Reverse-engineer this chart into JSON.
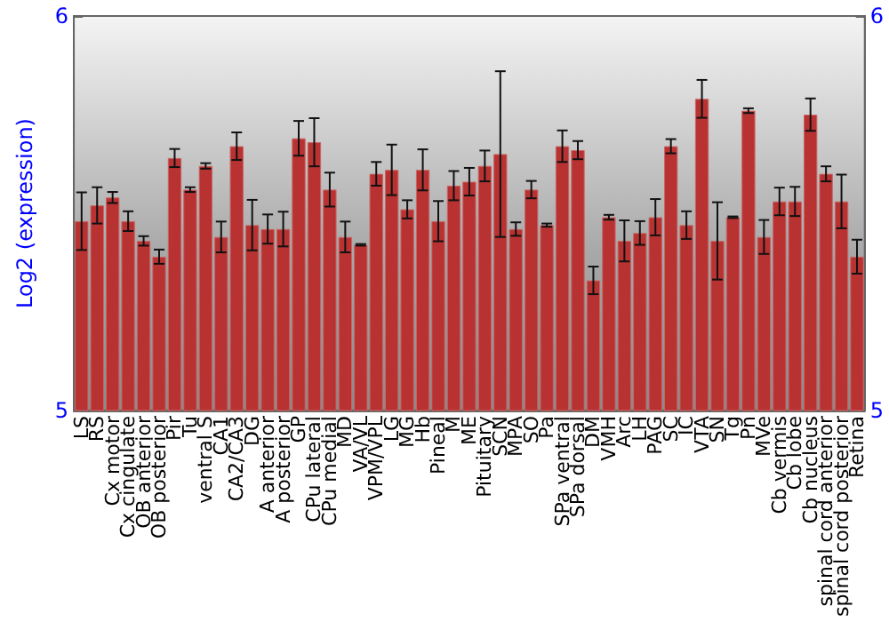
{
  "chart_data": {
    "type": "bar",
    "ylabel": "Log2 (expression)",
    "categories": [
      "LS",
      "RS",
      "Cx motor",
      "Cx cingulate",
      "OB anterior",
      "OB posterior",
      "Pir",
      "Tu",
      "ventral S",
      "CA1",
      "CA2/CA3",
      "DG",
      "A anterior",
      "A posterior",
      "GP",
      "CPu lateral",
      "CPu medial",
      "MD",
      "VA/VL",
      "VPM/VPL",
      "LG",
      "MG",
      "Hb",
      "Pineal",
      "M",
      "ME",
      "Pituitary",
      "SCN",
      "MPA",
      "SO",
      "Pa",
      "SPa ventral",
      "SPa dorsal",
      "DM",
      "VMH",
      "Arc",
      "LH",
      "PAG",
      "SC",
      "IC",
      "VTA",
      "SN",
      "Tg",
      "Pn",
      "MVe",
      "Cb vermis",
      "Cb lobe",
      "Cb nucleus",
      "spinal cord anterior",
      "spinal cord posterior",
      "Retina"
    ],
    "series": [
      {
        "color": "#b83232",
        "values": [
          5.48,
          5.52,
          5.54,
          5.48,
          5.43,
          5.39,
          5.64,
          5.56,
          5.62,
          5.44,
          5.67,
          5.47,
          5.46,
          5.46,
          5.69,
          5.68,
          5.56,
          5.44,
          5.42,
          5.6,
          5.61,
          5.51,
          5.61,
          5.48,
          5.57,
          5.58,
          5.62,
          5.65,
          5.46,
          5.56,
          5.47,
          5.67,
          5.66,
          5.33,
          5.49,
          5.43,
          5.45,
          5.49,
          5.67,
          5.47,
          5.79,
          5.43,
          5.49,
          5.76,
          5.44,
          5.53,
          5.53,
          5.75,
          5.6,
          5.53,
          5.39
        ],
        "errors": [
          0.073,
          0.046,
          0.014,
          0.025,
          0.012,
          0.018,
          0.023,
          0.006,
          0.007,
          0.039,
          0.035,
          0.064,
          0.037,
          0.044,
          0.044,
          0.061,
          0.043,
          0.039,
          0.002,
          0.03,
          0.064,
          0.023,
          0.052,
          0.051,
          0.037,
          0.035,
          0.039,
          0.21,
          0.017,
          0.022,
          0.004,
          0.04,
          0.023,
          0.035,
          0.006,
          0.052,
          0.03,
          0.046,
          0.018,
          0.035,
          0.048,
          0.098,
          0.002,
          0.006,
          0.043,
          0.035,
          0.037,
          0.041,
          0.019,
          0.068,
          0.043
        ]
      }
    ],
    "ylim": [
      5,
      6
    ],
    "yticks": [
      5,
      6
    ],
    "y2lim": [
      5,
      6
    ],
    "y2ticks": [
      5,
      6
    ],
    "grid": false
  }
}
